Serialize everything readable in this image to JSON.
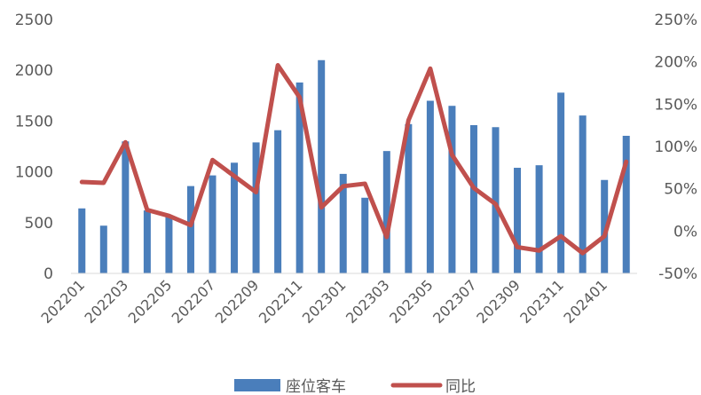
{
  "chart_data": {
    "type": "bar",
    "title": "",
    "xlabel": "",
    "ylabel": "",
    "categories": [
      "202201",
      "202202",
      "202203",
      "202204",
      "202205",
      "202206",
      "202207",
      "202208",
      "202209",
      "202210",
      "202211",
      "202212",
      "202301",
      "202302",
      "202303",
      "202304",
      "202305",
      "202306",
      "202307",
      "202308",
      "202309",
      "202310",
      "202311",
      "202312",
      "202401",
      "202402"
    ],
    "x_tick_labels": [
      "202201",
      "202203",
      "202205",
      "202207",
      "202209",
      "202211",
      "202301",
      "202303",
      "202305",
      "202307",
      "202309",
      "202311",
      "202401"
    ],
    "series": [
      {
        "name": "座位客车",
        "type": "bar",
        "axis": "left",
        "color": "#4a7ebb",
        "values": [
          640,
          470,
          1300,
          620,
          560,
          860,
          965,
          1090,
          1290,
          1410,
          1880,
          2100,
          980,
          745,
          1205,
          1470,
          1700,
          1650,
          1460,
          1440,
          1040,
          1065,
          1780,
          1555,
          920,
          1355
        ]
      },
      {
        "name": "同比",
        "type": "line",
        "axis": "right",
        "color": "#c0504d",
        "values": [
          0.58,
          0.57,
          1.05,
          0.25,
          0.18,
          0.07,
          0.84,
          0.65,
          0.46,
          1.96,
          1.58,
          0.28,
          0.53,
          0.56,
          -0.07,
          1.31,
          1.92,
          0.9,
          0.51,
          0.32,
          -0.19,
          -0.23,
          -0.06,
          -0.26,
          -0.06,
          0.82
        ]
      }
    ],
    "ylim_left": [
      0,
      2500
    ],
    "left_ticks": [
      "0",
      "500",
      "1000",
      "1500",
      "2000",
      "2500"
    ],
    "ylim_right": [
      -0.5,
      2.5
    ],
    "right_ticks": [
      "-50%",
      "0%",
      "50%",
      "100%",
      "150%",
      "200%",
      "250%"
    ],
    "grid": false,
    "legend_position": "bottom"
  }
}
